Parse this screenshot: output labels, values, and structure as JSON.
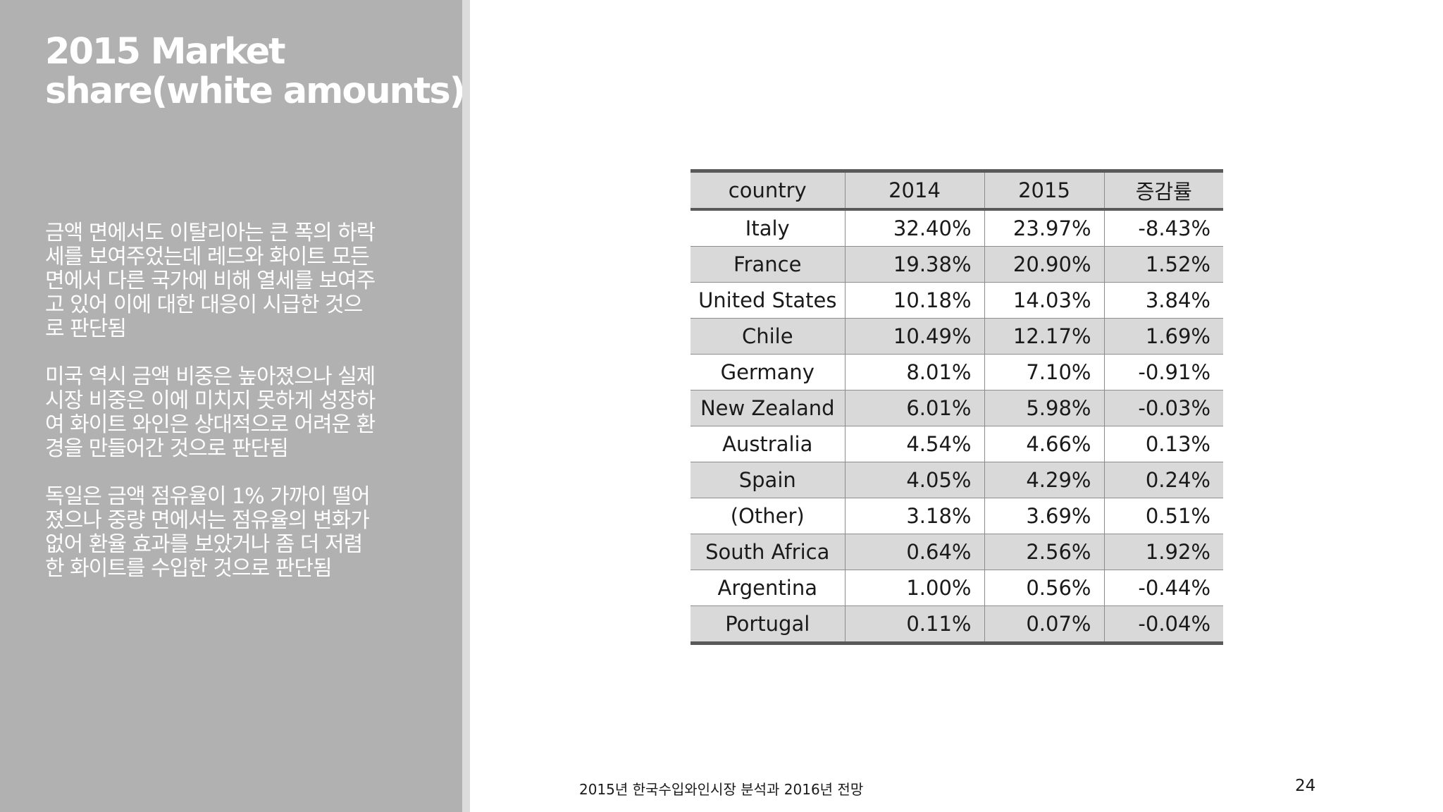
{
  "slide": {
    "title_lines": [
      "2015 Market",
      "share(white amounts)"
    ],
    "paragraphs": [
      [
        "금액 면에서도 이탈리아는 큰 폭의 하락",
        "세를 보여주었는데 레드와 화이트 모든",
        "면에서 다른 국가에 비해 열세를 보여주",
        "고 있어 이에 대한 대응이 시급한 것으",
        "로 판단됨"
      ],
      [
        "미국 역시 금액 비중은 높아졌으나 실제",
        "시장 비중은 이에 미치지 못하게 성장하",
        "여 화이트 와인은 상대적으로 어려운 환",
        "경을 만들어간 것으로 판단됨"
      ],
      [
        "독일은 금액 점유율이 1% 가까이 떨어",
        "졌으나 중량 면에서는 점유율의 변화가",
        "없어 환율 효과를 보았거나 좀 더 저렴",
        "한 화이트를 수입한 것으로 판단됨"
      ]
    ],
    "footer": "2015년 한국수입와인시장 분석과 2016년 전망",
    "page_number": "24"
  },
  "table": {
    "headers": [
      "country",
      "2014",
      "2015",
      "증감률"
    ],
    "rows": [
      [
        "Italy",
        "32.40%",
        "23.97%",
        "-8.43%"
      ],
      [
        "France",
        "19.38%",
        "20.90%",
        "1.52%"
      ],
      [
        "United States",
        "10.18%",
        "14.03%",
        "3.84%"
      ],
      [
        "Chile",
        "10.49%",
        "12.17%",
        "1.69%"
      ],
      [
        "Germany",
        "8.01%",
        "7.10%",
        "-0.91%"
      ],
      [
        "New Zealand",
        "6.01%",
        "5.98%",
        "-0.03%"
      ],
      [
        "Australia",
        "4.54%",
        "4.66%",
        "0.13%"
      ],
      [
        "Spain",
        "4.05%",
        "4.29%",
        "0.24%"
      ],
      [
        "(Other)",
        "3.18%",
        "3.69%",
        "0.51%"
      ],
      [
        "South Africa",
        "0.64%",
        "2.56%",
        "1.92%"
      ],
      [
        "Argentina",
        "1.00%",
        "0.56%",
        "-0.44%"
      ],
      [
        "Portugal",
        "0.11%",
        "0.07%",
        "-0.04%"
      ]
    ]
  },
  "colors": {
    "left_panel": "#b1b1b1",
    "divider_strip": "#dcdcdc",
    "table_rule": "#595959",
    "table_stripe": "#d9d9d9"
  }
}
